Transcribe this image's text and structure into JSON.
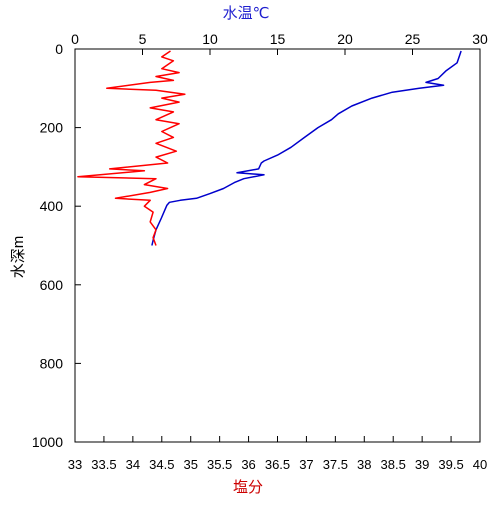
{
  "chart_data": {
    "type": "line",
    "grid": false,
    "top_axis": {
      "label": "水温℃",
      "label_color": "#1f1fcf",
      "range": [
        0,
        30
      ],
      "ticks": [
        "0",
        "5",
        "10",
        "15",
        "20",
        "25",
        "30"
      ]
    },
    "bottom_axis": {
      "label": "塩分",
      "label_color": "#cc0000",
      "range": [
        33,
        40
      ],
      "ticks": [
        "33",
        "33.5",
        "34",
        "34.5",
        "35",
        "35.5",
        "36",
        "36.5",
        "37",
        "37.5",
        "38",
        "38.5",
        "39",
        "39.5",
        "40"
      ]
    },
    "left_axis": {
      "label": "水深m",
      "range": [
        0,
        1000
      ],
      "inverted": true,
      "ticks": [
        "0",
        "200",
        "400",
        "600",
        "800",
        "1000"
      ]
    },
    "series": [
      {
        "key": "temperature",
        "color": "#0000cc",
        "axis": "top",
        "points": [
          [
            28.6,
            5
          ],
          [
            28.5,
            15
          ],
          [
            28.3,
            35
          ],
          [
            27.5,
            55
          ],
          [
            26.9,
            75
          ],
          [
            26.0,
            85
          ],
          [
            27.3,
            92
          ],
          [
            25.5,
            100
          ],
          [
            23.5,
            110
          ],
          [
            22.0,
            125
          ],
          [
            20.5,
            145
          ],
          [
            19.5,
            165
          ],
          [
            19.0,
            180
          ],
          [
            18.0,
            200
          ],
          [
            17.0,
            225
          ],
          [
            16.0,
            250
          ],
          [
            15.0,
            270
          ],
          [
            14.0,
            285
          ],
          [
            13.8,
            290
          ],
          [
            13.6,
            305
          ],
          [
            12.0,
            315
          ],
          [
            14.0,
            320
          ],
          [
            12.5,
            330
          ],
          [
            11.8,
            340
          ],
          [
            11.0,
            355
          ],
          [
            10.0,
            368
          ],
          [
            9.0,
            380
          ],
          [
            7.8,
            385
          ],
          [
            7.0,
            390
          ],
          [
            6.8,
            398
          ],
          [
            6.4,
            430
          ],
          [
            6.0,
            460
          ],
          [
            5.8,
            485
          ],
          [
            5.7,
            500
          ]
        ]
      },
      {
        "key": "salinity",
        "color": "#ff0000",
        "axis": "bottom",
        "points": [
          [
            34.65,
            5
          ],
          [
            34.5,
            20
          ],
          [
            34.7,
            30
          ],
          [
            34.5,
            50
          ],
          [
            34.8,
            60
          ],
          [
            34.4,
            70
          ],
          [
            34.7,
            80
          ],
          [
            34.3,
            85
          ],
          [
            33.55,
            100
          ],
          [
            34.4,
            105
          ],
          [
            34.9,
            115
          ],
          [
            34.5,
            125
          ],
          [
            34.8,
            135
          ],
          [
            34.3,
            150
          ],
          [
            34.7,
            160
          ],
          [
            34.4,
            180
          ],
          [
            34.8,
            190
          ],
          [
            34.5,
            210
          ],
          [
            34.7,
            225
          ],
          [
            34.4,
            240
          ],
          [
            34.75,
            260
          ],
          [
            34.4,
            275
          ],
          [
            34.6,
            290
          ],
          [
            33.6,
            305
          ],
          [
            34.2,
            310
          ],
          [
            33.05,
            325
          ],
          [
            34.4,
            330
          ],
          [
            34.2,
            345
          ],
          [
            34.6,
            355
          ],
          [
            34.3,
            365
          ],
          [
            33.7,
            380
          ],
          [
            34.3,
            385
          ],
          [
            34.2,
            400
          ],
          [
            34.35,
            415
          ],
          [
            34.3,
            440
          ],
          [
            34.4,
            460
          ],
          [
            34.35,
            480
          ],
          [
            34.4,
            500
          ]
        ]
      }
    ]
  }
}
